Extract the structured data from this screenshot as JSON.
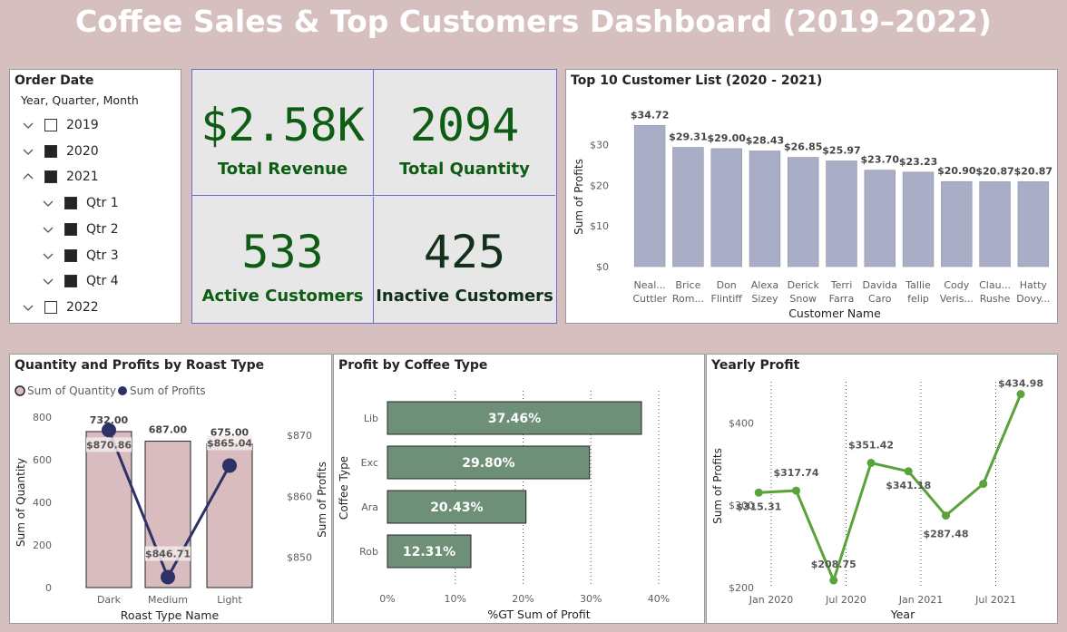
{
  "title": "Coffee Sales & Top Customers Dashboard (2019–2022)",
  "slicer": {
    "title": "Order Date",
    "subtitle": "Year, Quarter, Month",
    "items": [
      {
        "label": "2019",
        "checked": false,
        "level": 0,
        "chevron": "down"
      },
      {
        "label": "2020",
        "checked": true,
        "level": 0,
        "chevron": "down"
      },
      {
        "label": "2021",
        "checked": true,
        "level": 0,
        "chevron": "up"
      },
      {
        "label": "Qtr 1",
        "checked": true,
        "level": 1,
        "chevron": "down"
      },
      {
        "label": "Qtr 2",
        "checked": true,
        "level": 1,
        "chevron": "down"
      },
      {
        "label": "Qtr 3",
        "checked": true,
        "level": 1,
        "chevron": "down"
      },
      {
        "label": "Qtr 4",
        "checked": true,
        "level": 1,
        "chevron": "down"
      },
      {
        "label": "2022",
        "checked": false,
        "level": 0,
        "chevron": "down"
      }
    ]
  },
  "kpis": [
    {
      "value": "$2.58K",
      "label": "Total Revenue"
    },
    {
      "value": "2094",
      "label": "Total Quantity"
    },
    {
      "value": "533",
      "label": "Active Customers"
    },
    {
      "value": "425",
      "label": "Inactive Customers"
    }
  ],
  "colors": {
    "bar_customers": "#a9adc6",
    "bar_roast": "#d8bcbf",
    "line_profits": "#2d3166",
    "bar_coffee": "#6e8f78",
    "line_yearly": "#5aa33a",
    "kpi_green": "#0f5c14"
  },
  "chart_data": [
    {
      "type": "bar",
      "title": "Top 10 Customer List (2020 - 2021)",
      "xlabel": "Customer Name",
      "ylabel": "Sum of Profits",
      "ylim": [
        0,
        35
      ],
      "yticks": [
        "$0",
        "$10",
        "$20",
        "$30"
      ],
      "categories": [
        [
          "Neal...",
          "Cuttler"
        ],
        [
          "Brice",
          "Rom..."
        ],
        [
          "Don",
          "Flintiff"
        ],
        [
          "Alexa",
          "Sizey"
        ],
        [
          "Derick",
          "Snow"
        ],
        [
          "Terri",
          "Farra"
        ],
        [
          "Davida",
          "Caro"
        ],
        [
          "Tallie",
          "felip"
        ],
        [
          "Cody",
          "Veris..."
        ],
        [
          "Clau...",
          "Rushe"
        ],
        [
          "Hatty",
          "Dovy..."
        ]
      ],
      "values": [
        34.72,
        29.31,
        29.0,
        28.43,
        26.85,
        25.97,
        23.7,
        23.23,
        20.9,
        20.87,
        20.87
      ],
      "labels": [
        "$34.72",
        "$29.31",
        "$29.00",
        "$28.43",
        "$26.85",
        "$25.97",
        "$23.70",
        "$23.23",
        "$20.90",
        "$20.87",
        "$20.87"
      ]
    },
    {
      "type": "bar",
      "title": "Quantity and Profits by Roast Type",
      "xlabel": "Roast Type Name",
      "ylabel": "Sum of Quantity",
      "y2label": "Sum of Profits",
      "legend": [
        "Sum of Quantity",
        "Sum of Profits"
      ],
      "categories": [
        "Dark",
        "Medium",
        "Light"
      ],
      "series": [
        {
          "name": "Sum of Quantity",
          "values": [
            732,
            687,
            675
          ],
          "labels": [
            "732.00",
            "687.00",
            "675.00"
          ]
        },
        {
          "name": "Sum of Profits",
          "values": [
            870.86,
            846.71,
            865.04
          ],
          "labels": [
            "$870.86",
            "$846.71",
            "$865.04"
          ]
        }
      ],
      "ylim": [
        0,
        800
      ],
      "yticks": [
        "0",
        "200",
        "400",
        "600",
        "800"
      ],
      "y2lim": [
        845,
        873
      ],
      "y2ticks": [
        "$850",
        "$860",
        "$870"
      ]
    },
    {
      "type": "bar",
      "title": "Profit by Coffee Type",
      "xlabel": "%GT Sum of Profit",
      "ylabel": "Coffee Type",
      "categories": [
        "Lib",
        "Exc",
        "Ara",
        "Rob"
      ],
      "values": [
        37.46,
        29.8,
        20.43,
        12.31
      ],
      "labels": [
        "37.46%",
        "29.80%",
        "20.43%",
        "12.31%"
      ],
      "xlim": [
        0,
        40
      ],
      "xticks": [
        "0%",
        "10%",
        "20%",
        "30%",
        "40%"
      ]
    },
    {
      "type": "line",
      "title": "Yearly Profit",
      "xlabel": "Year",
      "ylabel": "Sum of Profits",
      "x": [
        "2019-12",
        "2020-03",
        "2020-06",
        "2020-09",
        "2020-12",
        "2021-03",
        "2021-06",
        "2021-09"
      ],
      "values": [
        315.31,
        317.74,
        208.75,
        351.42,
        341.18,
        287.48,
        326.0,
        434.98
      ],
      "labels": [
        "$315.31",
        "$317.74",
        "$208.75",
        "$351.42",
        "$341.18",
        "$287.48",
        "",
        "$434.98"
      ],
      "ylim": [
        200,
        450
      ],
      "yticks": [
        "$200",
        "$300",
        "$400"
      ],
      "xticks": [
        "Jan 2020",
        "Jul 2020",
        "Jan 2021",
        "Jul 2021"
      ]
    }
  ]
}
